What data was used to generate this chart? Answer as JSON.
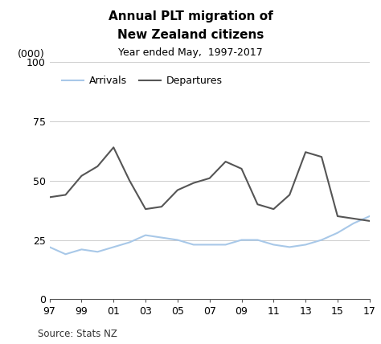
{
  "title_line1": "Annual PLT migration of",
  "title_line2": "New Zealand citizens",
  "subtitle": "Year ended May,  1997-2017",
  "ylabel": "(000)",
  "source": "Source: Stats NZ",
  "years": [
    1997,
    1998,
    1999,
    2000,
    2001,
    2002,
    2003,
    2004,
    2005,
    2006,
    2007,
    2008,
    2009,
    2010,
    2011,
    2012,
    2013,
    2014,
    2015,
    2016,
    2017
  ],
  "arrivals": [
    22,
    19,
    21,
    20,
    22,
    24,
    27,
    26,
    25,
    23,
    23,
    23,
    25,
    25,
    23,
    22,
    23,
    25,
    28,
    32,
    35
  ],
  "departures": [
    43,
    44,
    52,
    56,
    64,
    50,
    38,
    39,
    46,
    49,
    51,
    58,
    55,
    40,
    38,
    44,
    62,
    60,
    35,
    34,
    33
  ],
  "arrivals_color": "#a8c8e8",
  "departures_color": "#555555",
  "background_color": "#ffffff",
  "grid_color": "#cccccc",
  "ylim": [
    0,
    100
  ],
  "yticks": [
    0,
    25,
    50,
    75,
    100
  ],
  "xtick_labels": [
    "97",
    "99",
    "01",
    "03",
    "05",
    "07",
    "09",
    "11",
    "13",
    "15",
    "17"
  ],
  "xtick_positions": [
    1997,
    1999,
    2001,
    2003,
    2005,
    2007,
    2009,
    2011,
    2013,
    2015,
    2017
  ],
  "legend_arrivals": "Arrivals",
  "legend_departures": "Departures",
  "title_fontsize": 11,
  "subtitle_fontsize": 9,
  "axis_fontsize": 9,
  "source_fontsize": 8.5,
  "linewidth": 1.5
}
